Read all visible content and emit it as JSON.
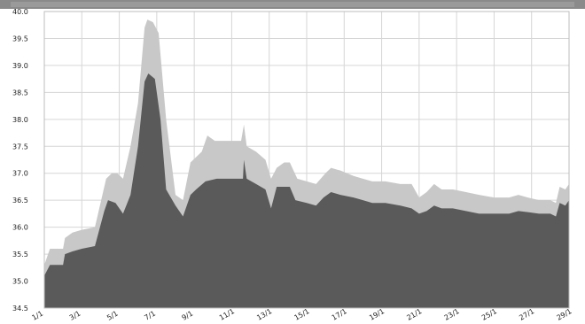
{
  "chart_data": {
    "type": "area",
    "title": "",
    "xlabel": "",
    "ylabel": "",
    "ylim": [
      34.5,
      40.0
    ],
    "grid": true,
    "legend": "none",
    "y_ticks": [
      "34.5",
      "35.0",
      "35.5",
      "36.0",
      "36.5",
      "37.0",
      "37.5",
      "38.0",
      "38.5",
      "39.0",
      "39.5",
      "40.0"
    ],
    "x_ticks": [
      {
        "x": 0,
        "label": "1/1"
      },
      {
        "x": 2,
        "label": "3/1"
      },
      {
        "x": 4,
        "label": "5/1"
      },
      {
        "x": 6,
        "label": "7/1"
      },
      {
        "x": 8,
        "label": "9/1"
      },
      {
        "x": 10,
        "label": "11/1"
      },
      {
        "x": 12,
        "label": "13/1"
      },
      {
        "x": 14,
        "label": "15/1"
      },
      {
        "x": 16,
        "label": "17/1"
      },
      {
        "x": 18,
        "label": "19/1"
      },
      {
        "x": 20,
        "label": "21/1"
      },
      {
        "x": 22,
        "label": "23/1"
      },
      {
        "x": 24,
        "label": "25/1"
      },
      {
        "x": 26,
        "label": "27/1"
      },
      {
        "x": 28,
        "label": "29/1"
      }
    ],
    "xlim": [
      0,
      28
    ],
    "series": [
      {
        "color": "#c8c8c8",
        "points": [
          [
            0,
            35.3
          ],
          [
            0.3,
            35.6
          ],
          [
            1.0,
            35.6
          ],
          [
            1.1,
            35.8
          ],
          [
            1.5,
            35.9
          ],
          [
            2.0,
            35.95
          ],
          [
            2.7,
            36.0
          ],
          [
            3.3,
            36.9
          ],
          [
            3.6,
            37.0
          ],
          [
            3.9,
            37.0
          ],
          [
            4.2,
            36.9
          ],
          [
            4.6,
            37.5
          ],
          [
            5.0,
            38.3
          ],
          [
            5.35,
            39.7
          ],
          [
            5.5,
            39.85
          ],
          [
            5.8,
            39.8
          ],
          [
            6.1,
            39.6
          ],
          [
            6.5,
            38.0
          ],
          [
            7.0,
            36.6
          ],
          [
            7.4,
            36.5
          ],
          [
            7.8,
            37.2
          ],
          [
            8.4,
            37.4
          ],
          [
            8.7,
            37.7
          ],
          [
            9.1,
            37.6
          ],
          [
            9.5,
            37.6
          ],
          [
            10.0,
            37.6
          ],
          [
            10.5,
            37.6
          ],
          [
            10.65,
            37.9
          ],
          [
            10.8,
            37.5
          ],
          [
            11.3,
            37.4
          ],
          [
            11.8,
            37.25
          ],
          [
            12.1,
            36.9
          ],
          [
            12.4,
            37.1
          ],
          [
            12.8,
            37.2
          ],
          [
            13.1,
            37.2
          ],
          [
            13.5,
            36.9
          ],
          [
            14.0,
            36.85
          ],
          [
            14.5,
            36.8
          ],
          [
            15.0,
            37.0
          ],
          [
            15.3,
            37.1
          ],
          [
            15.8,
            37.05
          ],
          [
            16.5,
            36.95
          ],
          [
            17.0,
            36.9
          ],
          [
            17.5,
            36.85
          ],
          [
            18.2,
            36.85
          ],
          [
            19.0,
            36.8
          ],
          [
            19.6,
            36.8
          ],
          [
            20.0,
            36.55
          ],
          [
            20.4,
            36.65
          ],
          [
            20.8,
            36.8
          ],
          [
            21.2,
            36.7
          ],
          [
            21.8,
            36.7
          ],
          [
            22.5,
            36.65
          ],
          [
            23.2,
            36.6
          ],
          [
            24.0,
            36.55
          ],
          [
            24.8,
            36.55
          ],
          [
            25.3,
            36.6
          ],
          [
            25.8,
            36.55
          ],
          [
            26.4,
            36.5
          ],
          [
            27.0,
            36.5
          ],
          [
            27.3,
            36.45
          ],
          [
            27.5,
            36.75
          ],
          [
            27.8,
            36.7
          ],
          [
            28.0,
            36.8
          ]
        ]
      },
      {
        "color": "#5a5a5a",
        "points": [
          [
            0,
            35.1
          ],
          [
            0.3,
            35.3
          ],
          [
            1.0,
            35.3
          ],
          [
            1.1,
            35.5
          ],
          [
            1.5,
            35.55
          ],
          [
            2.0,
            35.6
          ],
          [
            2.7,
            35.65
          ],
          [
            3.2,
            36.3
          ],
          [
            3.4,
            36.5
          ],
          [
            3.8,
            36.45
          ],
          [
            4.2,
            36.25
          ],
          [
            4.6,
            36.6
          ],
          [
            5.0,
            37.5
          ],
          [
            5.35,
            38.7
          ],
          [
            5.55,
            38.85
          ],
          [
            5.9,
            38.75
          ],
          [
            6.2,
            38.0
          ],
          [
            6.5,
            36.7
          ],
          [
            7.0,
            36.4
          ],
          [
            7.4,
            36.2
          ],
          [
            7.8,
            36.6
          ],
          [
            8.1,
            36.7
          ],
          [
            8.6,
            36.85
          ],
          [
            9.2,
            36.9
          ],
          [
            9.8,
            36.9
          ],
          [
            10.3,
            36.9
          ],
          [
            10.6,
            36.9
          ],
          [
            10.65,
            37.25
          ],
          [
            10.8,
            36.9
          ],
          [
            11.3,
            36.8
          ],
          [
            11.8,
            36.7
          ],
          [
            12.1,
            36.35
          ],
          [
            12.4,
            36.75
          ],
          [
            12.8,
            36.75
          ],
          [
            13.1,
            36.75
          ],
          [
            13.4,
            36.5
          ],
          [
            14.0,
            36.45
          ],
          [
            14.5,
            36.4
          ],
          [
            14.9,
            36.55
          ],
          [
            15.3,
            36.65
          ],
          [
            15.8,
            36.6
          ],
          [
            16.5,
            36.55
          ],
          [
            17.0,
            36.5
          ],
          [
            17.5,
            36.45
          ],
          [
            18.2,
            36.45
          ],
          [
            19.0,
            36.4
          ],
          [
            19.6,
            36.35
          ],
          [
            20.0,
            36.25
          ],
          [
            20.4,
            36.3
          ],
          [
            20.8,
            36.4
          ],
          [
            21.2,
            36.35
          ],
          [
            21.8,
            36.35
          ],
          [
            22.5,
            36.3
          ],
          [
            23.2,
            36.25
          ],
          [
            24.0,
            36.25
          ],
          [
            24.8,
            36.25
          ],
          [
            25.3,
            36.3
          ],
          [
            25.8,
            36.28
          ],
          [
            26.4,
            36.25
          ],
          [
            27.0,
            36.25
          ],
          [
            27.3,
            36.2
          ],
          [
            27.5,
            36.45
          ],
          [
            27.8,
            36.4
          ],
          [
            28.0,
            36.5
          ]
        ]
      }
    ]
  }
}
